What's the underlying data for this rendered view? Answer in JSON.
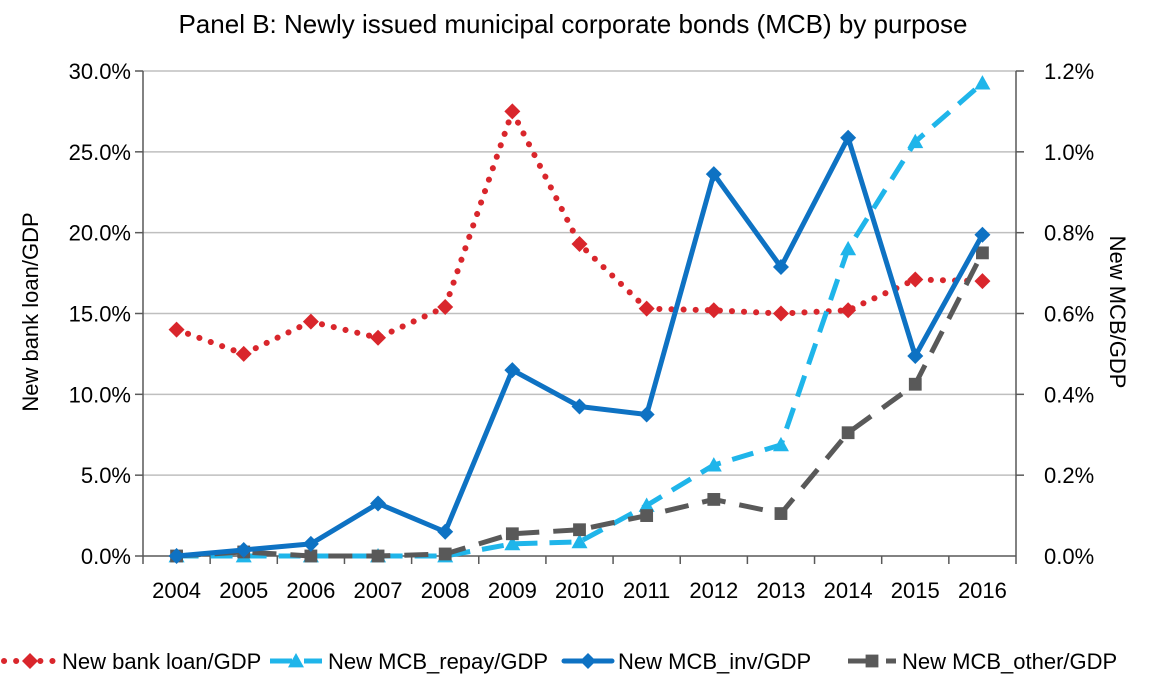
{
  "chart_data": {
    "type": "line",
    "title": "Panel B: Newly issued municipal corporate bonds (MCB)  by purpose",
    "ylabel": "New bank loan/GDP",
    "y2label": "New MCB/GDP",
    "categories": [
      "2004",
      "2005",
      "2006",
      "2007",
      "2008",
      "2009",
      "2010",
      "2011",
      "2012",
      "2013",
      "2014",
      "2015",
      "2016"
    ],
    "ylim": [
      0,
      30
    ],
    "y2lim": [
      0,
      1.2
    ],
    "yticks": [
      "0.0%",
      "5.0%",
      "10.0%",
      "15.0%",
      "20.0%",
      "25.0%",
      "30.0%"
    ],
    "y2ticks": [
      "0.0%",
      "0.2%",
      "0.4%",
      "0.6%",
      "0.8%",
      "1.0%",
      "1.2%"
    ],
    "grid": true,
    "legend_position": "bottom",
    "series": [
      {
        "name": "New bank loan/GDP",
        "axis": "left",
        "color": "#d9262c",
        "style": "dotted",
        "marker": "diamond",
        "values": [
          14.0,
          12.5,
          14.5,
          13.5,
          15.4,
          27.5,
          19.3,
          15.3,
          15.2,
          15.0,
          15.2,
          17.1,
          17.0
        ]
      },
      {
        "name": "New MCB_repay/GDP",
        "axis": "right",
        "color": "#1fb5ea",
        "style": "dashed",
        "marker": "triangle",
        "values": [
          0.0,
          0.0,
          0.0,
          0.0,
          0.0,
          0.03,
          0.035,
          0.125,
          0.225,
          0.275,
          0.76,
          1.025,
          1.17
        ]
      },
      {
        "name": "New MCB_inv/GDP",
        "axis": "right",
        "color": "#0e72c3",
        "style": "solid",
        "marker": "diamond",
        "values": [
          0.0,
          0.015,
          0.03,
          0.13,
          0.06,
          0.46,
          0.37,
          0.35,
          0.945,
          0.715,
          1.035,
          0.495,
          0.795
        ]
      },
      {
        "name": "New MCB_other/GDP",
        "axis": "right",
        "color": "#595959",
        "style": "longdash",
        "marker": "square",
        "values": [
          0.0,
          0.01,
          0.0,
          0.0,
          0.005,
          0.055,
          0.065,
          0.1,
          0.14,
          0.105,
          0.305,
          0.425,
          0.75
        ]
      }
    ]
  }
}
